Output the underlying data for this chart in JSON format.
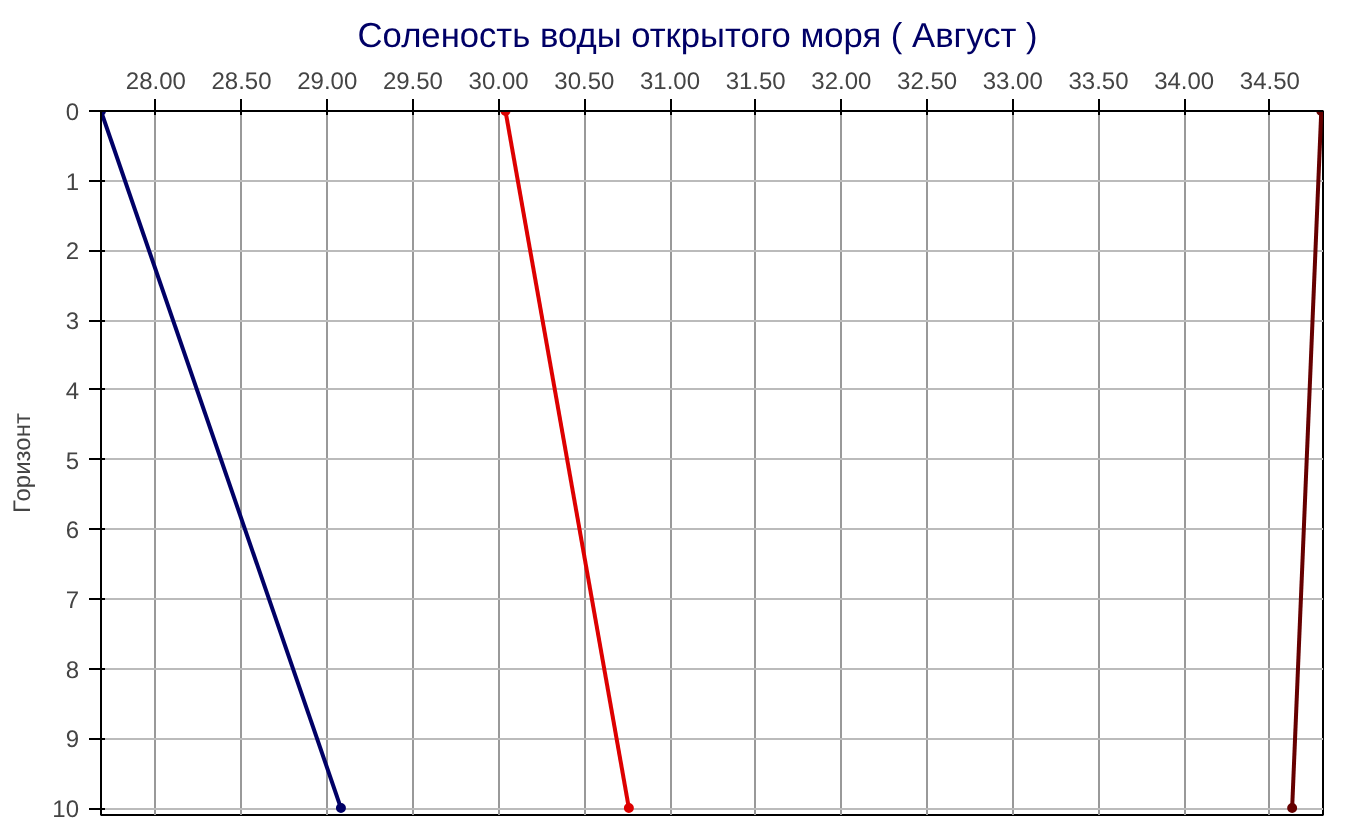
{
  "chart_data": {
    "type": "line",
    "title": "Соленость воды открытого моря    ( Август )",
    "ylabel": "Горизонт",
    "xlim": [
      27.68,
      34.81
    ],
    "xticks": [
      {
        "value": 28,
        "label": "28.00"
      },
      {
        "value": 28.5,
        "label": "28.50"
      },
      {
        "value": 29,
        "label": "29.00"
      },
      {
        "value": 29.5,
        "label": "29.50"
      },
      {
        "value": 30,
        "label": "30.00"
      },
      {
        "value": 30.5,
        "label": "30.50"
      },
      {
        "value": 31,
        "label": "31.00"
      },
      {
        "value": 31.5,
        "label": "31.50"
      },
      {
        "value": 32,
        "label": "32.00"
      },
      {
        "value": 32.5,
        "label": "32.50"
      },
      {
        "value": 33,
        "label": "33.00"
      },
      {
        "value": 33.5,
        "label": "33.50"
      },
      {
        "value": 34,
        "label": "34.00"
      },
      {
        "value": 34.5,
        "label": "34.50"
      }
    ],
    "ylim": [
      10.1,
      0
    ],
    "yticks": [
      0,
      1,
      2,
      3,
      4,
      5,
      6,
      7,
      8,
      9,
      10
    ],
    "grid": true,
    "marker": "circle",
    "line_style": "solid",
    "series": [
      {
        "color": "#000066",
        "x": [
          27.68,
          29.08
        ],
        "values": [
          0,
          10
        ]
      },
      {
        "color": "#dd0000",
        "x": [
          30.04,
          30.76
        ],
        "values": [
          0,
          10
        ]
      },
      {
        "color": "#660000",
        "x": [
          34.8,
          34.63
        ],
        "values": [
          0,
          10
        ]
      }
    ]
  }
}
